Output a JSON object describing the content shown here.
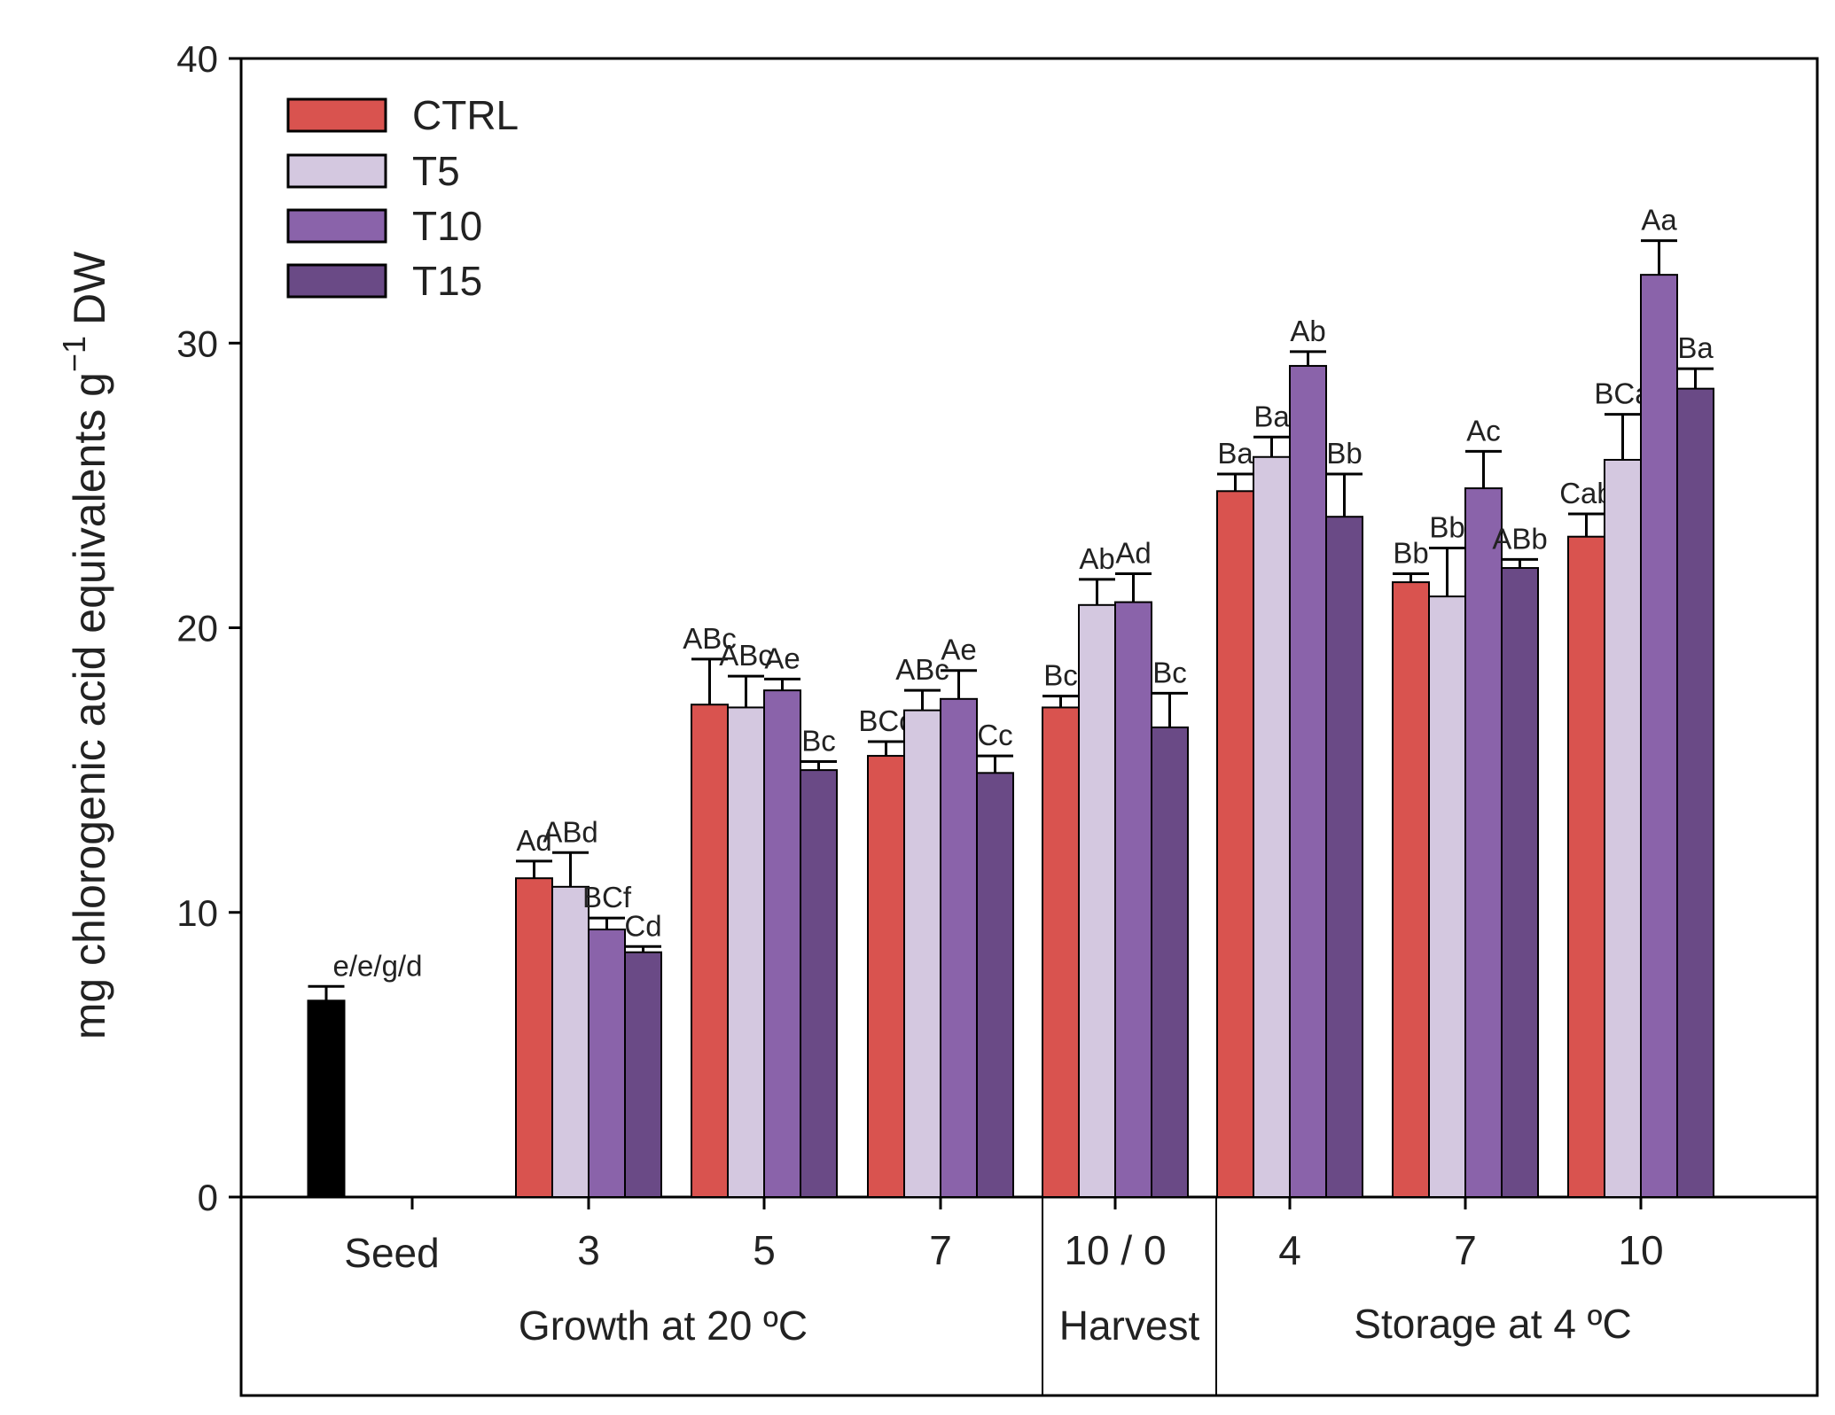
{
  "chart_data": {
    "type": "bar",
    "ylabel": "mg chlorogenic acid equivalents g",
    "ylabel_superscript": "−1",
    "ylabel_suffix": "DW",
    "ylim": [
      0,
      40
    ],
    "yticks": [
      "0",
      "10",
      "20",
      "30",
      "40"
    ],
    "seed": {
      "label": "Seed",
      "value": 6.9,
      "error": 0.5,
      "sig": "e/e/g/d",
      "color": "#000000"
    },
    "series": [
      {
        "name": "CTRL",
        "color": "#d9534f"
      },
      {
        "name": "T5",
        "color": "#d4c8e0"
      },
      {
        "name": "T10",
        "color": "#8a63aa"
      },
      {
        "name": "T15",
        "color": "#6a4a86"
      }
    ],
    "groups": [
      {
        "label": "3",
        "values": [
          11.2,
          10.9,
          9.4,
          8.6
        ],
        "errors": [
          0.6,
          1.2,
          0.4,
          0.2
        ],
        "sig": [
          "Ad",
          "ABd",
          "BCf",
          "Cd"
        ]
      },
      {
        "label": "5",
        "values": [
          17.3,
          17.2,
          17.8,
          15.0
        ],
        "errors": [
          1.6,
          1.1,
          0.4,
          0.3
        ],
        "sig": [
          "ABc",
          "ABc",
          "Ae",
          "Bc"
        ]
      },
      {
        "label": "7",
        "values": [
          15.5,
          17.1,
          17.5,
          14.9
        ],
        "errors": [
          0.5,
          0.7,
          1.0,
          0.6
        ],
        "sig": [
          "BCc",
          "ABc",
          "Ae",
          "Cc"
        ]
      },
      {
        "label": "10 / 0",
        "values": [
          17.2,
          20.8,
          20.9,
          16.5
        ],
        "errors": [
          0.4,
          0.9,
          1.0,
          1.2
        ],
        "sig": [
          "Bc",
          "Ab",
          "Ad",
          "Bc"
        ]
      },
      {
        "label": "4",
        "values": [
          24.8,
          26.0,
          29.2,
          23.9
        ],
        "errors": [
          0.6,
          0.7,
          0.5,
          1.5
        ],
        "sig": [
          "Ba",
          "Ba",
          "Ab",
          "Bb"
        ]
      },
      {
        "label": "7",
        "values": [
          21.6,
          21.1,
          24.9,
          22.1
        ],
        "errors": [
          0.3,
          1.7,
          1.3,
          0.3
        ],
        "sig": [
          "Bb",
          "Bb",
          "Ac",
          "ABb"
        ]
      },
      {
        "label": "10",
        "values": [
          23.2,
          25.9,
          32.4,
          28.4
        ],
        "errors": [
          0.8,
          1.6,
          1.2,
          0.7
        ],
        "sig": [
          "Cab",
          "BCa",
          "Aa",
          "Ba"
        ]
      }
    ],
    "sections": [
      {
        "label": "Growth at 20 ºC"
      },
      {
        "label": "Harvest"
      },
      {
        "label": "Storage at 4 ºC"
      }
    ]
  }
}
